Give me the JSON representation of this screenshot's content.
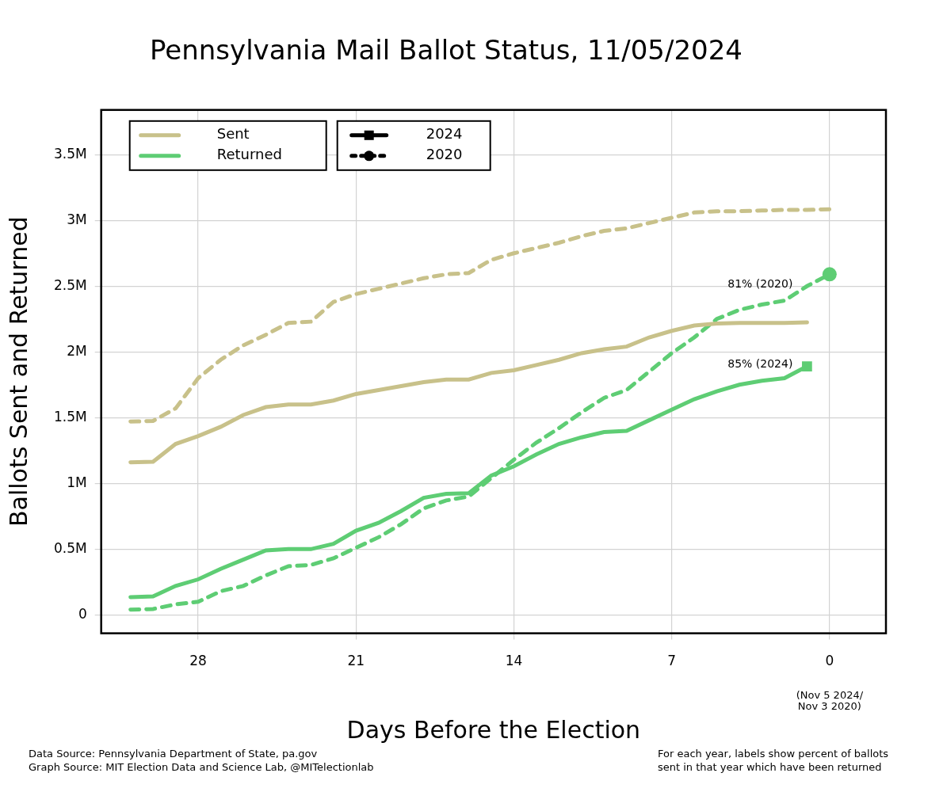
{
  "chart_data": {
    "type": "line",
    "title": "Pennsylvania Mail Ballot Status, 11/05/2024",
    "xlabel": "Days Before the Election",
    "ylabel": "Ballots Sent and Returned",
    "x": [
      31,
      30,
      29,
      28,
      27,
      26,
      25,
      24,
      23,
      22,
      21,
      20,
      19,
      18,
      17,
      16,
      15,
      14,
      13,
      12,
      11,
      10,
      9,
      8,
      7,
      6,
      5,
      4,
      3,
      2,
      1,
      0
    ],
    "series": [
      {
        "name": "Sent",
        "group": "2024",
        "color": "#c8c18a",
        "line_style": "solid",
        "values": [
          1160000,
          1165000,
          1300000,
          1360000,
          1430000,
          1520000,
          1580000,
          1600000,
          1600000,
          1630000,
          1680000,
          1710000,
          1740000,
          1770000,
          1790000,
          1790000,
          1840000,
          1860000,
          1900000,
          1940000,
          1990000,
          2020000,
          2040000,
          2110000,
          2160000,
          2200000,
          2215000,
          2220000,
          2220000,
          2220000,
          2225000,
          null
        ]
      },
      {
        "name": "Returned",
        "group": "2024",
        "color": "#5ecd74",
        "line_style": "solid",
        "marker": "square",
        "values": [
          135000,
          140000,
          220000,
          270000,
          350000,
          420000,
          490000,
          500000,
          500000,
          540000,
          640000,
          700000,
          790000,
          890000,
          920000,
          925000,
          1060000,
          1130000,
          1220000,
          1300000,
          1350000,
          1390000,
          1400000,
          1480000,
          1560000,
          1640000,
          1700000,
          1750000,
          1780000,
          1800000,
          1890000,
          null
        ]
      },
      {
        "name": "Sent",
        "group": "2020",
        "color": "#c8c18a",
        "line_style": "dashed",
        "values": [
          1470000,
          1475000,
          1570000,
          1800000,
          1940000,
          2050000,
          2130000,
          2220000,
          2230000,
          2380000,
          2440000,
          2480000,
          2520000,
          2560000,
          2590000,
          2600000,
          2700000,
          2750000,
          2790000,
          2830000,
          2880000,
          2920000,
          2940000,
          2980000,
          3020000,
          3060000,
          3070000,
          3070000,
          3075000,
          3080000,
          3080000,
          3085000
        ]
      },
      {
        "name": "Returned",
        "group": "2020",
        "color": "#5ecd74",
        "line_style": "dashed",
        "marker": "circle",
        "values": [
          40000,
          45000,
          80000,
          100000,
          180000,
          220000,
          300000,
          370000,
          380000,
          430000,
          510000,
          590000,
          690000,
          810000,
          870000,
          900000,
          1040000,
          1180000,
          1310000,
          1420000,
          1540000,
          1650000,
          1710000,
          1850000,
          1990000,
          2110000,
          2250000,
          2320000,
          2360000,
          2390000,
          2500000,
          2590000
        ]
      }
    ],
    "xlim": [
      32.3,
      -2.5
    ],
    "xticks": [
      28,
      21,
      14,
      7,
      0
    ],
    "x_tick_note": {
      "value": 0,
      "lines": [
        "(Nov 5 2024/",
        "Nov 3 2020)"
      ]
    },
    "ylim": [
      -140000,
      3840000
    ],
    "yticks": [
      0,
      {
        "value": 500000,
        "label": "0.5M"
      },
      {
        "value": 1000000,
        "label": "1M"
      },
      {
        "value": 1500000,
        "label": "1.5M"
      },
      {
        "value": 2000000,
        "label": "2M"
      },
      {
        "value": 2500000,
        "label": "2.5M"
      },
      {
        "value": 3000000,
        "label": "3M"
      },
      {
        "value": 3500000,
        "label": "3.5M"
      }
    ],
    "grid": true,
    "legend": "top-left",
    "annotations": [
      {
        "text": "81% (2020)",
        "x": 1,
        "y": 2500000
      },
      {
        "text": "85% (2024)",
        "x": 1,
        "y": 1890000
      }
    ],
    "footnotes_left": [
      "Data Source: Pennsylvania Department of State, pa.gov",
      "Graph Source: MIT Election Data and Science Lab, @MITelectionlab"
    ],
    "footnotes_right": [
      "For each year, labels show percent of ballots",
      "sent in that year which have been returned"
    ]
  }
}
